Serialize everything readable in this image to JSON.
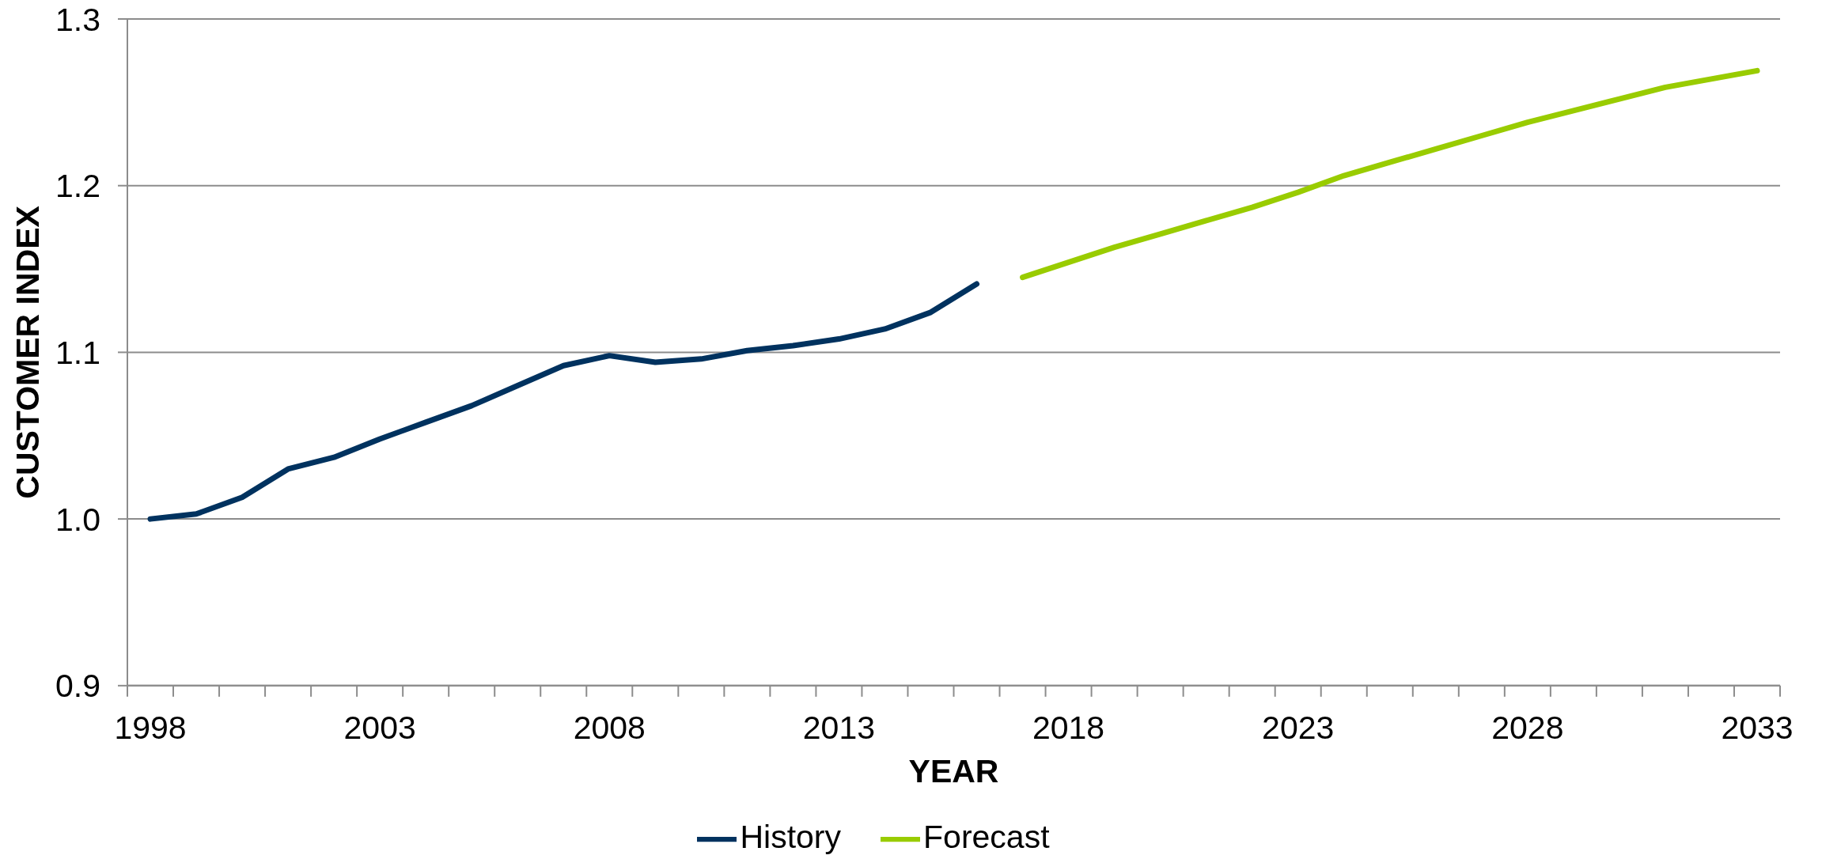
{
  "chart_data": {
    "type": "line",
    "xlabel": "YEAR",
    "ylabel": "CUSTOMER INDEX",
    "categories": [
      "1998",
      null,
      null,
      null,
      null,
      "2003",
      null,
      null,
      null,
      null,
      "2008",
      null,
      null,
      null,
      null,
      "2013",
      null,
      null,
      null,
      null,
      "2018",
      null,
      null,
      null,
      null,
      "2023",
      null,
      null,
      null,
      null,
      "2028",
      null,
      null,
      null,
      null,
      "2033"
    ],
    "series": [
      {
        "name": "History",
        "color": "#00325f",
        "values": [
          1.0,
          1.003,
          1.013,
          1.03,
          1.037,
          1.048,
          1.058,
          1.068,
          1.08,
          1.092,
          1.098,
          1.094,
          1.096,
          1.101,
          1.104,
          1.108,
          1.114,
          1.124,
          1.141,
          null,
          null,
          null,
          null,
          null,
          null,
          null,
          null,
          null,
          null,
          null,
          null,
          null,
          null,
          null,
          null,
          null
        ]
      },
      {
        "name": "Forecast",
        "color": "#99cc00",
        "values": [
          null,
          null,
          null,
          null,
          null,
          null,
          null,
          null,
          null,
          null,
          null,
          null,
          null,
          null,
          null,
          null,
          null,
          null,
          null,
          1.145,
          1.154,
          1.163,
          1.171,
          1.179,
          1.187,
          1.196,
          1.206,
          1.214,
          1.222,
          1.23,
          1.238,
          1.245,
          1.252,
          1.259,
          1.264,
          1.269
        ]
      }
    ],
    "ylim": [
      0.9,
      1.3
    ],
    "yticks": [
      0.9,
      {
        "value": 1,
        "label": "1.0"
      },
      1.1,
      1.2,
      1.3
    ],
    "grid": "y",
    "legend": "bottom"
  }
}
